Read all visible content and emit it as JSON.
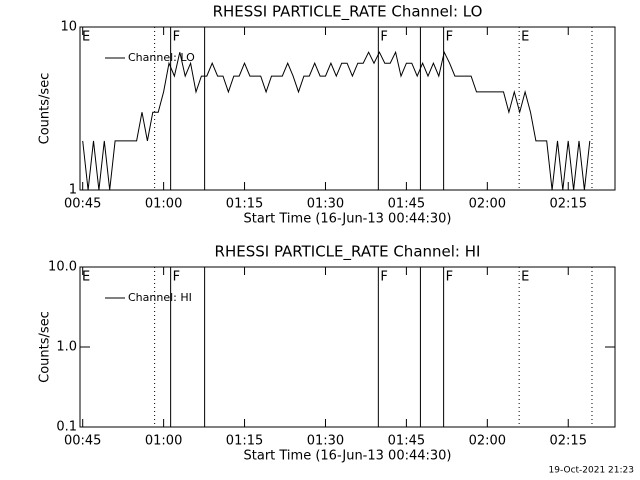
{
  "chart_data": [
    {
      "type": "line",
      "title": "RHESSI PARTICLE_RATE Channel: LO",
      "x_label": "Start Time (16-Jun-13 00:44:30)",
      "y_label": "Counts/sec",
      "log_y": true,
      "color": "#000000",
      "xlim": [
        "00:44:30",
        "02:23:40"
      ],
      "xticks": [
        "00:45",
        "01:00",
        "01:15",
        "01:30",
        "01:45",
        "02:00",
        "02:15"
      ],
      "ylim": [
        1,
        10
      ],
      "yticks": [
        1,
        10
      ],
      "markers": [
        {
          "time": "00:58:20",
          "style": "dotted"
        },
        {
          "time": "01:01:18",
          "style": "solid"
        },
        {
          "time": "01:07:36",
          "style": "solid"
        },
        {
          "time": "01:39:48",
          "style": "solid"
        },
        {
          "time": "01:47:36",
          "style": "solid"
        },
        {
          "time": "01:51:54",
          "style": "solid"
        },
        {
          "time": "02:05:54",
          "style": "dotted"
        },
        {
          "time": "02:19:24",
          "style": "dotted"
        }
      ],
      "flags": [
        {
          "time": "00:44:30",
          "label": "E"
        },
        {
          "time": "01:01:18",
          "label": "F"
        },
        {
          "time": "01:39:48",
          "label": "F"
        },
        {
          "time": "01:51:54",
          "label": "F"
        },
        {
          "time": "02:05:54",
          "label": "E"
        }
      ],
      "series": [
        {
          "name": "Channel: LO",
          "color": "#000000",
          "x": [
            "00:45",
            "00:46",
            "00:47",
            "00:48",
            "00:49",
            "00:50",
            "00:51",
            "00:52",
            "00:53",
            "00:54",
            "00:55",
            "00:56",
            "00:57",
            "00:58",
            "00:59",
            "01:00",
            "01:01",
            "01:02",
            "01:03",
            "01:04",
            "01:05",
            "01:06",
            "01:07",
            "01:08",
            "01:09",
            "01:10",
            "01:11",
            "01:12",
            "01:13",
            "01:14",
            "01:15",
            "01:16",
            "01:17",
            "01:18",
            "01:19",
            "01:20",
            "01:21",
            "01:22",
            "01:23",
            "01:24",
            "01:25",
            "01:26",
            "01:27",
            "01:28",
            "01:29",
            "01:30",
            "01:31",
            "01:32",
            "01:33",
            "01:34",
            "01:35",
            "01:36",
            "01:37",
            "01:38",
            "01:39",
            "01:40",
            "01:41",
            "01:42",
            "01:43",
            "01:44",
            "01:45",
            "01:46",
            "01:47",
            "01:48",
            "01:49",
            "01:50",
            "01:51",
            "01:52",
            "01:53",
            "01:54",
            "01:55",
            "01:56",
            "01:57",
            "01:58",
            "01:59",
            "02:00",
            "02:01",
            "02:02",
            "02:03",
            "02:04",
            "02:05",
            "02:06",
            "02:07",
            "02:08",
            "02:09",
            "02:10",
            "02:11",
            "02:12",
            "02:13",
            "02:14",
            "02:15",
            "02:16",
            "02:17",
            "02:18",
            "02:19"
          ],
          "values": [
            2,
            1,
            2,
            1,
            2,
            1,
            2,
            2,
            2,
            2,
            2,
            3,
            2,
            3,
            3,
            4,
            6,
            5,
            7,
            5,
            6,
            4,
            5,
            5,
            6,
            5,
            5,
            4,
            5,
            5,
            6,
            5,
            5,
            5,
            4,
            5,
            5,
            5,
            6,
            5,
            4,
            5,
            5,
            6,
            5,
            5,
            6,
            5,
            6,
            6,
            5,
            6,
            6,
            7,
            6,
            7,
            6,
            6,
            7,
            5,
            6,
            6,
            5,
            6,
            5,
            6,
            5,
            7,
            6,
            5,
            5,
            5,
            5,
            4,
            4,
            4,
            4,
            4,
            4,
            3,
            4,
            3,
            4,
            3,
            2,
            2,
            2,
            1,
            2,
            1,
            2,
            1,
            2,
            1,
            2
          ]
        }
      ]
    },
    {
      "type": "line",
      "title": "RHESSI PARTICLE_RATE Channel: HI",
      "x_label": "Start Time (16-Jun-13 00:44:30)",
      "y_label": "Counts/sec",
      "log_y": true,
      "color": "#000000",
      "xlim": [
        "00:44:30",
        "02:23:40"
      ],
      "xticks": [
        "00:45",
        "01:00",
        "01:15",
        "01:30",
        "01:45",
        "02:00",
        "02:15"
      ],
      "ylim": [
        0.1,
        10
      ],
      "yticks": [
        0.1,
        {
          "value": 1,
          "label": "1.0"
        },
        {
          "value": 10,
          "label": "10.0"
        }
      ],
      "markers": [
        {
          "time": "00:58:20",
          "style": "dotted"
        },
        {
          "time": "01:01:18",
          "style": "solid"
        },
        {
          "time": "01:07:36",
          "style": "solid"
        },
        {
          "time": "01:39:48",
          "style": "solid"
        },
        {
          "time": "01:47:36",
          "style": "solid"
        },
        {
          "time": "01:51:54",
          "style": "solid"
        },
        {
          "time": "02:05:54",
          "style": "dotted"
        },
        {
          "time": "02:19:24",
          "style": "dotted"
        }
      ],
      "flags": [
        {
          "time": "00:44:30",
          "label": "E"
        },
        {
          "time": "01:01:18",
          "label": "F"
        },
        {
          "time": "01:39:48",
          "label": "F"
        },
        {
          "time": "01:51:54",
          "label": "F"
        },
        {
          "time": "02:05:54",
          "label": "E"
        }
      ],
      "series": [
        {
          "name": "Channel: HI",
          "color": "#000000",
          "x": [],
          "values": []
        }
      ]
    }
  ],
  "footer": "19-Oct-2021 21:23"
}
